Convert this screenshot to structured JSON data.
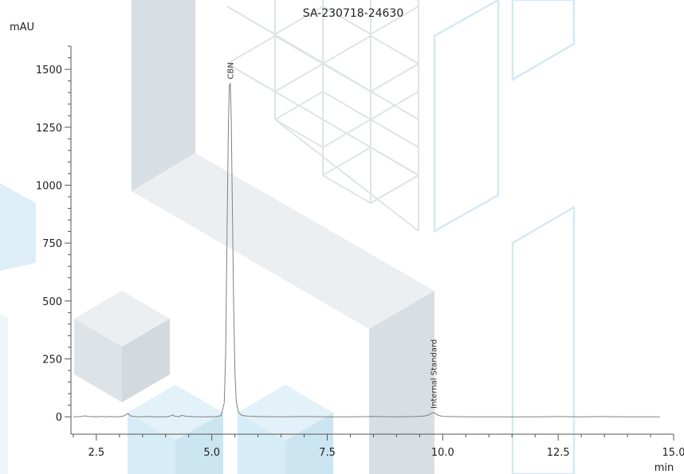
{
  "chart_data": {
    "type": "line",
    "title": "SA-230718-24630",
    "xlabel": "min",
    "ylabel": "mAU",
    "xlim": [
      1.95,
      15.0
    ],
    "ylim": [
      -75,
      1600
    ],
    "x_ticks": [
      2.5,
      5.0,
      7.5,
      10.0,
      12.5,
      15.0
    ],
    "x_tick_labels": [
      "2.5",
      "5.0",
      "7.5",
      "10.0",
      "12.5",
      "15.0"
    ],
    "y_ticks": [
      0,
      250,
      500,
      750,
      1000,
      1250,
      1500
    ],
    "y_tick_labels": [
      "0",
      "250",
      "500",
      "750",
      "1000",
      "1250",
      "1500"
    ],
    "grid": false,
    "line_color": "#808080",
    "series": [
      {
        "x": [
          2.0,
          2.15,
          2.25,
          2.35,
          2.5,
          2.6,
          2.7,
          2.8,
          3.0,
          3.1,
          3.18,
          3.25,
          3.4,
          3.6,
          3.8,
          4.0,
          4.1,
          4.15,
          4.2,
          4.3,
          4.35,
          4.45,
          4.55,
          4.7,
          4.9,
          5.1,
          5.2,
          5.27,
          5.3,
          5.33,
          5.36,
          5.38,
          5.4,
          5.42,
          5.44,
          5.47,
          5.5,
          5.53,
          5.58,
          5.65,
          5.8,
          6.0,
          6.5,
          7.0,
          7.5,
          8.0,
          8.5,
          9.0,
          9.4,
          9.6,
          9.7,
          9.75,
          9.8,
          9.85,
          9.9,
          10.0,
          10.2,
          10.6,
          11.0,
          12.0,
          12.5,
          13.0,
          13.5,
          14.0,
          14.5,
          14.7
        ],
        "y": [
          0,
          1,
          4,
          1,
          0,
          2,
          0,
          1,
          0,
          4,
          14,
          3,
          0,
          1,
          0,
          0,
          3,
          8,
          2,
          1,
          6,
          2,
          1,
          0,
          0,
          1,
          5,
          60,
          280,
          800,
          1260,
          1430,
          1440,
          1300,
          980,
          520,
          190,
          65,
          18,
          6,
          2,
          1,
          0,
          1,
          0,
          0,
          1,
          0,
          1,
          3,
          8,
          15,
          18,
          14,
          6,
          2,
          1,
          0,
          0,
          0,
          1,
          0,
          1,
          0,
          0,
          0
        ]
      }
    ],
    "annotations": [
      {
        "text": "CBN",
        "x": 5.4,
        "y": 1440
      },
      {
        "text": "Internal Standard",
        "x": 9.8,
        "y": 18
      }
    ]
  }
}
